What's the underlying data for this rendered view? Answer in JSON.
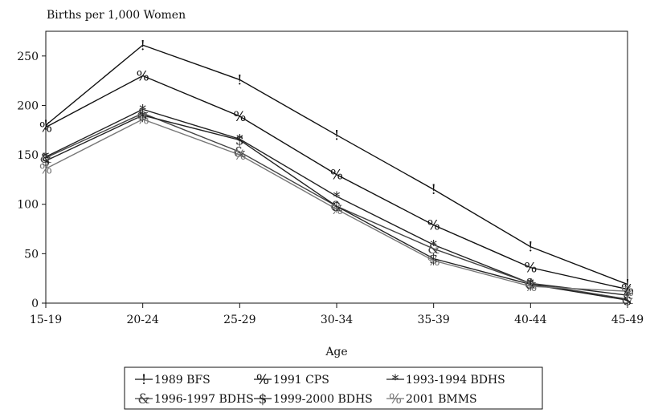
{
  "chart_data": {
    "type": "line",
    "title": "",
    "ylabel": "Births per 1,000 Women",
    "xlabel": "Age",
    "categories": [
      "15-19",
      "20-24",
      "25-29",
      "30-34",
      "35-39",
      "40-44",
      "45-49"
    ],
    "ylim": [
      0,
      275
    ],
    "yticks": [
      0,
      50,
      100,
      150,
      200,
      250
    ],
    "grid": false,
    "legend_position": "bottom",
    "series": [
      {
        "name": "1989 BFS",
        "marker": "!",
        "color": "#111111",
        "values": [
          180,
          261,
          226,
          170,
          115,
          57,
          19
        ]
      },
      {
        "name": "1991 CPS",
        "marker": "%",
        "color": "#111111",
        "values": [
          178,
          230,
          189,
          130,
          79,
          36,
          14
        ]
      },
      {
        "name": "1993-1994 BDHS",
        "marker": "*",
        "color": "#222222",
        "values": [
          148,
          196,
          166,
          108,
          59,
          20,
          8
        ]
      },
      {
        "name": "1996-1997 BDHS",
        "marker": "&",
        "color": "#444444",
        "values": [
          147,
          192,
          153,
          98,
          55,
          20,
          4
        ]
      },
      {
        "name": "1999-2000 BDHS",
        "marker": "$",
        "color": "#222222",
        "values": [
          144,
          190,
          165,
          98,
          45,
          19,
          3
        ]
      },
      {
        "name": "2001 BMMS",
        "marker": "%",
        "color": "#777777",
        "values": [
          136,
          186,
          150,
          95,
          43,
          17,
          12
        ]
      }
    ]
  }
}
